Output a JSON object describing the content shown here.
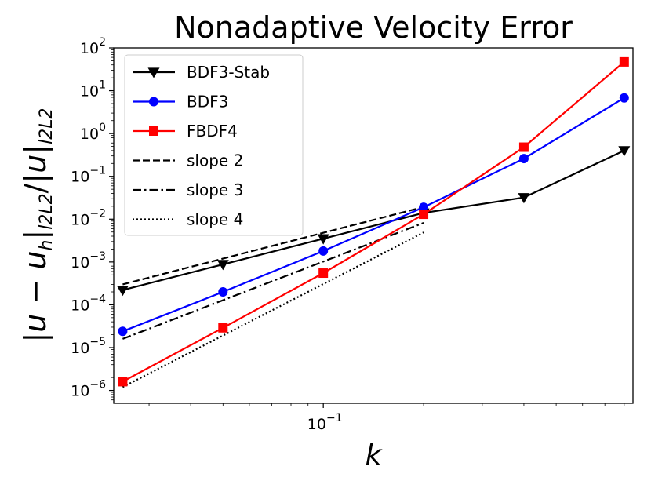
{
  "chart_data": {
    "type": "line",
    "title": "Nonadaptive Velocity Error",
    "xlabel": "k",
    "ylabel": "|u − u_h|_{l2L2}/|u|_{l2L2}",
    "xscale": "log",
    "yscale": "log",
    "xlim": [
      0.0235,
      0.85
    ],
    "ylim": [
      5e-07,
      100
    ],
    "x_ticks": [
      {
        "base": "10",
        "exp": "−1",
        "value": 0.1
      }
    ],
    "y_ticks": [
      {
        "base": "10",
        "exp": "−6",
        "value": 1e-06
      },
      {
        "base": "10",
        "exp": "−5",
        "value": 1e-05
      },
      {
        "base": "10",
        "exp": "−4",
        "value": 0.0001
      },
      {
        "base": "10",
        "exp": "−3",
        "value": 0.001
      },
      {
        "base": "10",
        "exp": "−2",
        "value": 0.01
      },
      {
        "base": "10",
        "exp": "−1",
        "value": 0.1
      },
      {
        "base": "10",
        "exp": "0",
        "value": 1
      },
      {
        "base": "10",
        "exp": "1",
        "value": 10
      },
      {
        "base": "10",
        "exp": "2",
        "value": 100
      }
    ],
    "legend_position": "top-left",
    "series": [
      {
        "name": "BDF3-Stab",
        "color": "#000000",
        "marker": "triangle-down",
        "dash": "solid",
        "x": [
          0.025,
          0.05,
          0.1,
          0.2,
          0.4,
          0.8
        ],
        "y": [
          0.00022,
          0.00088,
          0.0035,
          0.014,
          0.032,
          0.4
        ]
      },
      {
        "name": "BDF3",
        "color": "#0000ff",
        "marker": "circle",
        "dash": "solid",
        "x": [
          0.025,
          0.05,
          0.1,
          0.2,
          0.4,
          0.8
        ],
        "y": [
          2.4e-05,
          0.0002,
          0.0018,
          0.019,
          0.26,
          6.8
        ]
      },
      {
        "name": "FBDF4",
        "color": "#ff0000",
        "marker": "square",
        "dash": "solid",
        "x": [
          0.025,
          0.05,
          0.1,
          0.2,
          0.4,
          0.8
        ],
        "y": [
          1.6e-06,
          2.9e-05,
          0.00055,
          0.013,
          0.48,
          47
        ]
      },
      {
        "name": "slope 2",
        "color": "#000000",
        "marker": "none",
        "dash": "dashed",
        "x": [
          0.025,
          0.2
        ],
        "y": [
          0.0003,
          0.0192
        ]
      },
      {
        "name": "slope 3",
        "color": "#000000",
        "marker": "none",
        "dash": "dashdot",
        "x": [
          0.025,
          0.2
        ],
        "y": [
          1.6e-05,
          0.0082
        ]
      },
      {
        "name": "slope 4",
        "color": "#000000",
        "marker": "none",
        "dash": "dotted",
        "x": [
          0.025,
          0.2
        ],
        "y": [
          1.2e-06,
          0.0049
        ]
      }
    ]
  }
}
